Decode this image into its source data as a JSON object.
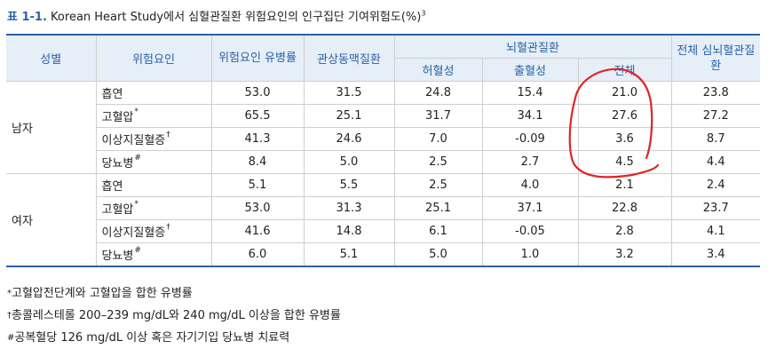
{
  "caption": {
    "label": "표 1-1.",
    "title": " Korean Heart Study에서 심혈관질환 위험요인의 인구집단 기여위험도(%)",
    "sup": "3"
  },
  "headers": {
    "sex": "성별",
    "factor": "위험요인",
    "prevalence": "위험요인 유병률",
    "coronary": "관상동맥질환",
    "cerebro": "뇌혈관질환",
    "ischemic": "허혈성",
    "hemorrhagic": "출혈성",
    "cerebro_total": "전체",
    "total": "전체 심뇌혈관질환"
  },
  "groups": [
    {
      "sex": "남자",
      "rows": [
        {
          "factor": "흡연",
          "mark": "",
          "values": [
            "53.0",
            "31.5",
            "24.8",
            "15.4",
            "21.0",
            "23.8"
          ]
        },
        {
          "factor": "고혈압",
          "mark": "*",
          "values": [
            "65.5",
            "25.1",
            "31.7",
            "34.1",
            "27.6",
            "27.2"
          ]
        },
        {
          "factor": "이상지질혈증",
          "mark": "†",
          "values": [
            "41.3",
            "24.6",
            "7.0",
            "-0.09",
            "3.6",
            "8.7"
          ]
        },
        {
          "factor": "당뇨병",
          "mark": "#",
          "values": [
            "8.4",
            "5.0",
            "2.5",
            "2.7",
            "4.5",
            "4.4"
          ]
        }
      ]
    },
    {
      "sex": "여자",
      "rows": [
        {
          "factor": "흡연",
          "mark": "",
          "values": [
            "5.1",
            "5.5",
            "2.5",
            "4.0",
            "2.1",
            "2.4"
          ]
        },
        {
          "factor": "고혈압",
          "mark": "*",
          "values": [
            "53.0",
            "31.3",
            "25.1",
            "37.1",
            "22.8",
            "23.7"
          ]
        },
        {
          "factor": "이상지질혈증",
          "mark": "†",
          "values": [
            "41.6",
            "14.8",
            "6.1",
            "-0.05",
            "2.8",
            "4.1"
          ]
        },
        {
          "factor": "당뇨병",
          "mark": "#",
          "values": [
            "6.0",
            "5.1",
            "5.0",
            "1.0",
            "3.2",
            "3.4"
          ]
        }
      ]
    }
  ],
  "notes": [
    {
      "sym": "*",
      "text": "고혈압전단계와 고혈압을 합한 유병률"
    },
    {
      "sym": "†",
      "text": "총콜레스테롤 200–239 mg/dL와 240 mg/dL 이상을 합한 유병률"
    },
    {
      "sym": "#",
      "text": "공복혈당 126 mg/dL 이상 혹은 자기기입 당뇨병 치료력"
    }
  ],
  "colors": {
    "accent": "#2a62a9",
    "header_bg": "#e6eef8",
    "annotation": "#e02424"
  }
}
